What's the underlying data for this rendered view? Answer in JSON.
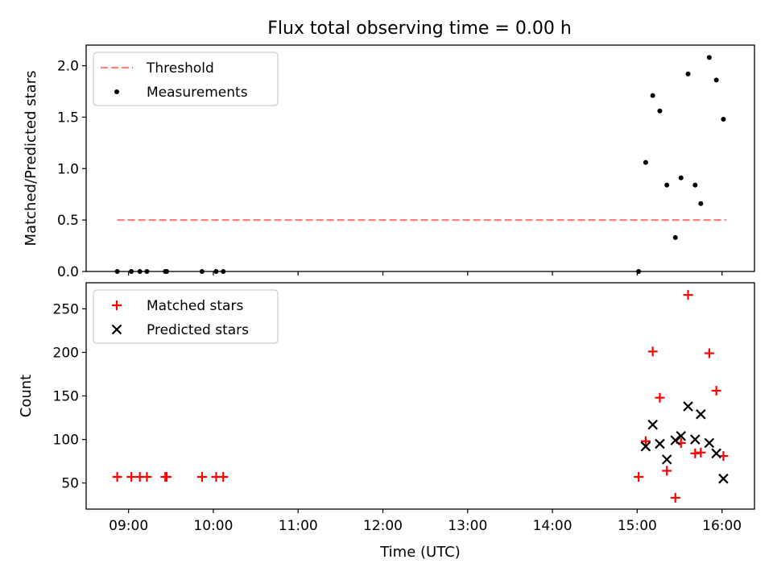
{
  "title": "Flux total observing time = 0.00 h",
  "chart_data": [
    {
      "type": "line",
      "panel": "top",
      "xlabel": "",
      "ylabel": "Matched/Predicted stars",
      "xlim": [
        "08:30",
        "16:23"
      ],
      "ylim": [
        0,
        2.2
      ],
      "yticks": [
        0.0,
        0.5,
        1.0,
        1.5,
        2.0
      ],
      "ytick_labels": [
        "0.0",
        "0.5",
        "1.0",
        "1.5",
        "2.0"
      ],
      "grid": false,
      "legend_position": "top-left",
      "series": [
        {
          "name": "Threshold",
          "style": "dashed",
          "color": "#ff8080",
          "points": [
            [
              "08:52",
              0.5
            ],
            [
              "16:03",
              0.5
            ]
          ]
        },
        {
          "name": "Measurements",
          "style": "scatter",
          "marker": "dot",
          "color": "#000000",
          "points": [
            [
              "08:52",
              0.0
            ],
            [
              "09:02",
              0.0
            ],
            [
              "09:08",
              0.0
            ],
            [
              "09:13",
              0.0
            ],
            [
              "09:26",
              0.0
            ],
            [
              "09:27",
              0.0
            ],
            [
              "09:52",
              0.0
            ],
            [
              "10:02",
              0.0
            ],
            [
              "10:07",
              0.0
            ],
            [
              "15:01",
              0.0
            ],
            [
              "15:06",
              1.06
            ],
            [
              "15:11",
              1.71
            ],
            [
              "15:16",
              1.56
            ],
            [
              "15:21",
              0.84
            ],
            [
              "15:27",
              0.33
            ],
            [
              "15:31",
              0.91
            ],
            [
              "15:36",
              1.92
            ],
            [
              "15:41",
              0.84
            ],
            [
              "15:45",
              0.66
            ],
            [
              "15:51",
              2.08
            ],
            [
              "15:56",
              1.86
            ],
            [
              "16:01",
              1.48
            ]
          ]
        }
      ]
    },
    {
      "type": "scatter",
      "panel": "bottom",
      "xlabel": "Time (UTC)",
      "ylabel": "Count",
      "xlim": [
        "08:30",
        "16:23"
      ],
      "ylim": [
        20,
        280
      ],
      "yticks": [
        50,
        100,
        150,
        200,
        250
      ],
      "ytick_labels": [
        "50",
        "100",
        "150",
        "200",
        "250"
      ],
      "xticks": [
        "09:00",
        "10:00",
        "11:00",
        "12:00",
        "13:00",
        "14:00",
        "15:00",
        "16:00"
      ],
      "xtick_labels": [
        "09:00",
        "10:00",
        "11:00",
        "12:00",
        "13:00",
        "14:00",
        "15:00",
        "16:00"
      ],
      "grid": false,
      "legend_position": "top-left",
      "series": [
        {
          "name": "Matched stars",
          "marker": "plus",
          "color": "#ff0000",
          "points": [
            [
              "08:52",
              57
            ],
            [
              "09:02",
              57
            ],
            [
              "09:08",
              57
            ],
            [
              "09:13",
              57
            ],
            [
              "09:26",
              57
            ],
            [
              "09:27",
              57
            ],
            [
              "09:52",
              57
            ],
            [
              "10:02",
              57
            ],
            [
              "10:07",
              57
            ],
            [
              "15:01",
              57
            ],
            [
              "15:06",
              98
            ],
            [
              "15:11",
              201
            ],
            [
              "15:16",
              148
            ],
            [
              "15:21",
              64
            ],
            [
              "15:27",
              33
            ],
            [
              "15:31",
              96
            ],
            [
              "15:36",
              266
            ],
            [
              "15:41",
              84
            ],
            [
              "15:45",
              85
            ],
            [
              "15:51",
              199
            ],
            [
              "15:56",
              156
            ],
            [
              "16:01",
              81
            ]
          ]
        },
        {
          "name": "Predicted stars",
          "marker": "x",
          "color": "#000000",
          "points": [
            [
              "15:06",
              92
            ],
            [
              "15:11",
              117
            ],
            [
              "15:16",
              95
            ],
            [
              "15:21",
              77
            ],
            [
              "15:27",
              99
            ],
            [
              "15:31",
              104
            ],
            [
              "15:36",
              138
            ],
            [
              "15:41",
              100
            ],
            [
              "15:45",
              129
            ],
            [
              "15:51",
              96
            ],
            [
              "15:56",
              84
            ],
            [
              "16:01",
              55
            ]
          ]
        }
      ]
    }
  ]
}
